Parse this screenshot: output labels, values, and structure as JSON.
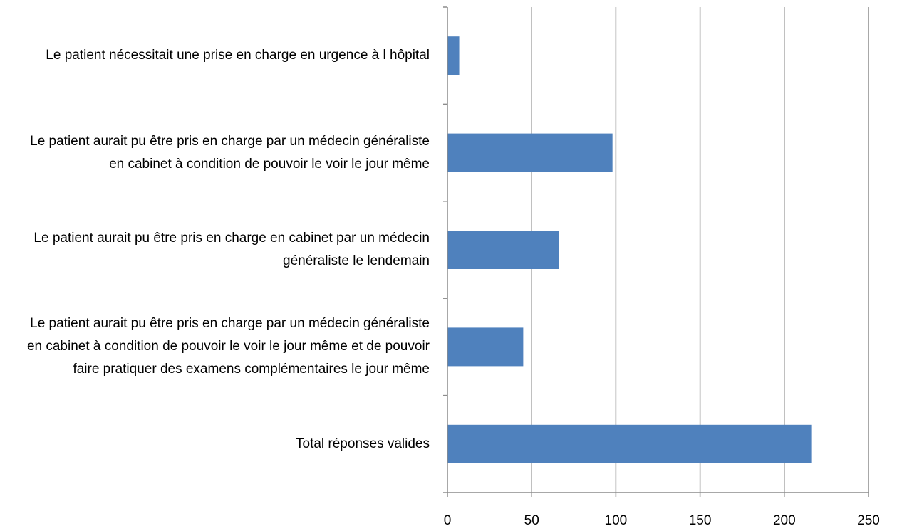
{
  "chart_data": {
    "type": "bar",
    "orientation": "horizontal",
    "categories": [
      "Le patient nécessitait une prise en charge en urgence à l hôpital",
      "Le patient aurait pu être pris en charge par un médecin généraliste en cabinet à condition de pouvoir le voir le jour même",
      "Le patient aurait pu être pris en charge en cabinet par un médecin généraliste le lendemain",
      "Le patient aurait pu être pris en charge par un médecin généraliste en cabinet à condition de pouvoir le voir le jour même et de pouvoir faire pratiquer des examens complémentaires le jour même",
      "Total réponses valides"
    ],
    "values": [
      7,
      98,
      66,
      45,
      216
    ],
    "color": "#4f81bd",
    "xlim": [
      0,
      250
    ],
    "xticks": [
      0,
      50,
      100,
      150,
      200,
      250
    ],
    "grid": true
  }
}
